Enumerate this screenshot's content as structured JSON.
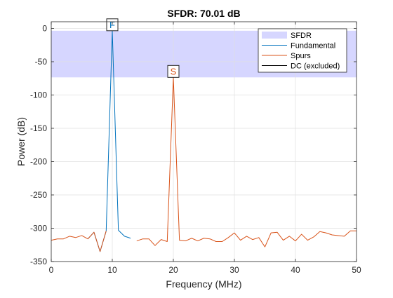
{
  "chart_data": {
    "type": "line",
    "title": "SFDR:  70.01 dB",
    "xlabel": "Frequency (MHz)",
    "ylabel": "Power (dB)",
    "xlim": [
      0,
      50
    ],
    "ylim": [
      -350,
      10
    ],
    "xticks": [
      0,
      10,
      20,
      30,
      40,
      50
    ],
    "yticks": [
      0,
      -50,
      -100,
      -150,
      -200,
      -250,
      -300,
      -350
    ],
    "grid": true,
    "legend_position": "top-right",
    "sfdr_band": {
      "name": "SFDR",
      "top": -3.5,
      "bottom": -73.5,
      "color": "#d6d6ff"
    },
    "series": [
      {
        "name": "Fundamental",
        "color": "#0072bd",
        "x": [
          6,
          7,
          8,
          9,
          10,
          11,
          12,
          13
        ],
        "y": [
          -316,
          -306,
          -335,
          -304,
          -3.5,
          -303,
          -312,
          -315
        ]
      },
      {
        "name": "Spurs",
        "color": "#d95319",
        "x": [
          0,
          1,
          2,
          3,
          4,
          5,
          6,
          7,
          8,
          9,
          10,
          11,
          12,
          13,
          14,
          15,
          16,
          17,
          18,
          19,
          20,
          21,
          22,
          23,
          24,
          25,
          26,
          27,
          28,
          29,
          30,
          31,
          32,
          33,
          34,
          35,
          36,
          37,
          38,
          39,
          40,
          41,
          42,
          43,
          44,
          45,
          46,
          47,
          48,
          49,
          50
        ],
        "y": [
          -318,
          -316,
          -316,
          -312,
          -314,
          -311,
          -316,
          -306,
          -335,
          -304,
          null,
          null,
          null,
          null,
          -319,
          -316,
          -316,
          -326,
          -317,
          -320,
          -73.5,
          -318,
          -319,
          -315,
          -319,
          -315,
          -316,
          -320,
          -320,
          -314,
          -307,
          -318,
          -312,
          -317,
          -314,
          -328,
          -307,
          -306,
          -318,
          -312,
          -319,
          -309,
          -318,
          -313,
          -305,
          -307,
          -310,
          -311,
          -312,
          -304,
          -304
        ]
      },
      {
        "name": "DC (excluded)",
        "color": "#000000",
        "x": [],
        "y": []
      }
    ],
    "markers": [
      {
        "label": "F",
        "x": 10,
        "y": -3.5,
        "color": "#0072bd"
      },
      {
        "label": "S",
        "x": 20,
        "y": -73.5,
        "color": "#d95319"
      }
    ]
  }
}
